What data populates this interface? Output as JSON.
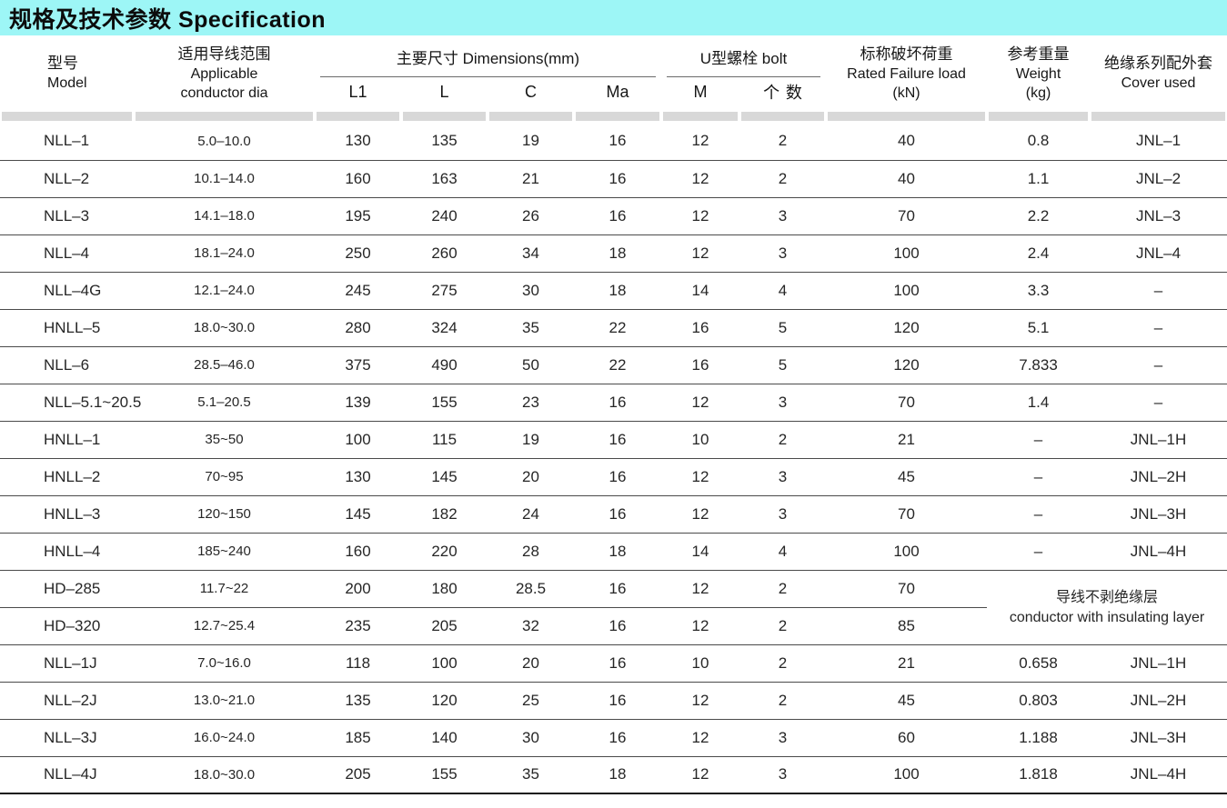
{
  "title": "规格及技术参数 Specification",
  "colors": {
    "title_bar": "#9df6f6",
    "divider_bar": "#d8d8d8",
    "row_line": "#4a4a4a"
  },
  "table": {
    "headers": {
      "model_zh": "型号",
      "model_en": "Model",
      "range_zh": "适用导线范围",
      "range_en1": "Applicable",
      "range_en2": "conductor dia",
      "dims": "主要尺寸 Dimensions(mm)",
      "bolt": "U型螺栓 bolt",
      "sub": [
        "L1",
        "L",
        "C",
        "Ma",
        "M",
        "个数"
      ],
      "load_zh": "标称破坏荷重",
      "load_en": "Rated Failure load",
      "load_unit": "(kN)",
      "weight_zh": "参考重量",
      "weight_en": "Weight",
      "weight_unit": "(kg)",
      "cover_zh": "绝缘系列配外套",
      "cover_en": "Cover used"
    },
    "merged_note": {
      "zh": "导线不剥绝缘层",
      "en": "conductor with insulating layer"
    },
    "rows": [
      {
        "cells": [
          "NLL–1",
          "5.0–10.0",
          "130",
          "135",
          "19",
          "16",
          "12",
          "2",
          "40",
          "0.8",
          "JNL–1"
        ]
      },
      {
        "cells": [
          "NLL–2",
          "10.1–14.0",
          "160",
          "163",
          "21",
          "16",
          "12",
          "2",
          "40",
          "1.1",
          "JNL–2"
        ]
      },
      {
        "cells": [
          "NLL–3",
          "14.1–18.0",
          "195",
          "240",
          "26",
          "16",
          "12",
          "3",
          "70",
          "2.2",
          "JNL–3"
        ]
      },
      {
        "cells": [
          "NLL–4",
          "18.1–24.0",
          "250",
          "260",
          "34",
          "18",
          "12",
          "3",
          "100",
          "2.4",
          "JNL–4"
        ]
      },
      {
        "cells": [
          "NLL–4G",
          "12.1–24.0",
          "245",
          "275",
          "30",
          "18",
          "14",
          "4",
          "100",
          "3.3",
          "–"
        ]
      },
      {
        "cells": [
          "HNLL–5",
          "18.0~30.0",
          "280",
          "324",
          "35",
          "22",
          "16",
          "5",
          "120",
          "5.1",
          "–"
        ]
      },
      {
        "cells": [
          "NLL–6",
          "28.5–46.0",
          "375",
          "490",
          "50",
          "22",
          "16",
          "5",
          "120",
          "7.833",
          "–"
        ]
      },
      {
        "cells": [
          "NLL–5.1~20.5",
          "5.1–20.5",
          "139",
          "155",
          "23",
          "16",
          "12",
          "3",
          "70",
          "1.4",
          "–"
        ]
      },
      {
        "cells": [
          "HNLL–1",
          "35~50",
          "100",
          "115",
          "19",
          "16",
          "10",
          "2",
          "21",
          "–",
          "JNL–1H"
        ]
      },
      {
        "cells": [
          "HNLL–2",
          "70~95",
          "130",
          "145",
          "20",
          "16",
          "12",
          "3",
          "45",
          "–",
          "JNL–2H"
        ]
      },
      {
        "cells": [
          "HNLL–3",
          "120~150",
          "145",
          "182",
          "24",
          "16",
          "12",
          "3",
          "70",
          "–",
          "JNL–3H"
        ]
      },
      {
        "cells": [
          "HNLL–4",
          "185~240",
          "160",
          "220",
          "28",
          "18",
          "14",
          "4",
          "100",
          "–",
          "JNL–4H"
        ]
      },
      {
        "cells": [
          "HD–285",
          "11.7~22",
          "200",
          "180",
          "28.5",
          "16",
          "12",
          "2",
          "70"
        ],
        "merge_start": true
      },
      {
        "cells": [
          "HD–320",
          "12.7~25.4",
          "235",
          "205",
          "32",
          "16",
          "12",
          "2",
          "85"
        ],
        "merged": true
      },
      {
        "cells": [
          "NLL–1J",
          "7.0~16.0",
          "118",
          "100",
          "20",
          "16",
          "10",
          "2",
          "21",
          "0.658",
          "JNL–1H"
        ]
      },
      {
        "cells": [
          "NLL–2J",
          "13.0~21.0",
          "135",
          "120",
          "25",
          "16",
          "12",
          "2",
          "45",
          "0.803",
          "JNL–2H"
        ]
      },
      {
        "cells": [
          "NLL–3J",
          "16.0~24.0",
          "185",
          "140",
          "30",
          "16",
          "12",
          "3",
          "60",
          "1.188",
          "JNL–3H"
        ]
      },
      {
        "cells": [
          "NLL–4J",
          "18.0~30.0",
          "205",
          "155",
          "35",
          "18",
          "12",
          "3",
          "100",
          "1.818",
          "JNL–4H"
        ]
      }
    ]
  }
}
